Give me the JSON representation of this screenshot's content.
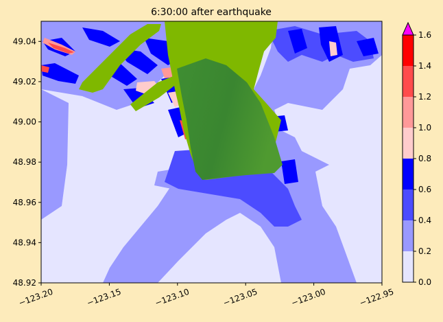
{
  "title": "6:30:00 after earthquake",
  "map": {
    "lon_range": [
      -123.2,
      -122.95
    ],
    "lat_range": [
      48.92,
      49.05
    ],
    "x_ticks": [
      {
        "value": -123.2,
        "label": "−123.20"
      },
      {
        "value": -123.15,
        "label": "−123.15"
      },
      {
        "value": -123.1,
        "label": "−123.10"
      },
      {
        "value": -123.05,
        "label": "−123.05"
      },
      {
        "value": -123.0,
        "label": "−123.00"
      },
      {
        "value": -122.95,
        "label": "−122.95"
      }
    ],
    "y_ticks": [
      {
        "value": 48.92,
        "label": "48.92"
      },
      {
        "value": 48.94,
        "label": "48.94"
      },
      {
        "value": 48.96,
        "label": "48.96"
      },
      {
        "value": 48.98,
        "label": "48.98"
      },
      {
        "value": 49.0,
        "label": "49.00"
      },
      {
        "value": 49.02,
        "label": "49.02"
      },
      {
        "value": 49.04,
        "label": "49.04"
      }
    ],
    "land_colors": {
      "land_light": "#7fb800",
      "land_dark": "#3a8a30"
    }
  },
  "colorbar": {
    "range": [
      0.0,
      1.6
    ],
    "extend": "max",
    "extend_color": "#ff00ff",
    "ticks": [
      {
        "value": 0.0,
        "label": "0.0"
      },
      {
        "value": 0.2,
        "label": "0.2"
      },
      {
        "value": 0.4,
        "label": "0.4"
      },
      {
        "value": 0.6,
        "label": "0.6"
      },
      {
        "value": 0.8,
        "label": "0.8"
      },
      {
        "value": 1.0,
        "label": "1.0"
      },
      {
        "value": 1.2,
        "label": "1.2"
      },
      {
        "value": 1.4,
        "label": "1.4"
      },
      {
        "value": 1.6,
        "label": "1.6"
      }
    ],
    "levels": [
      {
        "from": 0.0,
        "to": 0.2,
        "color": "#e5e5ff"
      },
      {
        "from": 0.2,
        "to": 0.4,
        "color": "#9999ff"
      },
      {
        "from": 0.4,
        "to": 0.6,
        "color": "#4c4cff"
      },
      {
        "from": 0.6,
        "to": 0.8,
        "color": "#0000ff"
      },
      {
        "from": 0.8,
        "to": 1.0,
        "color": "#ffcccc"
      },
      {
        "from": 1.0,
        "to": 1.2,
        "color": "#ff9999"
      },
      {
        "from": 1.2,
        "to": 1.4,
        "color": "#ff4c4c"
      },
      {
        "from": 1.4,
        "to": 1.6,
        "color": "#ff0000"
      }
    ]
  }
}
